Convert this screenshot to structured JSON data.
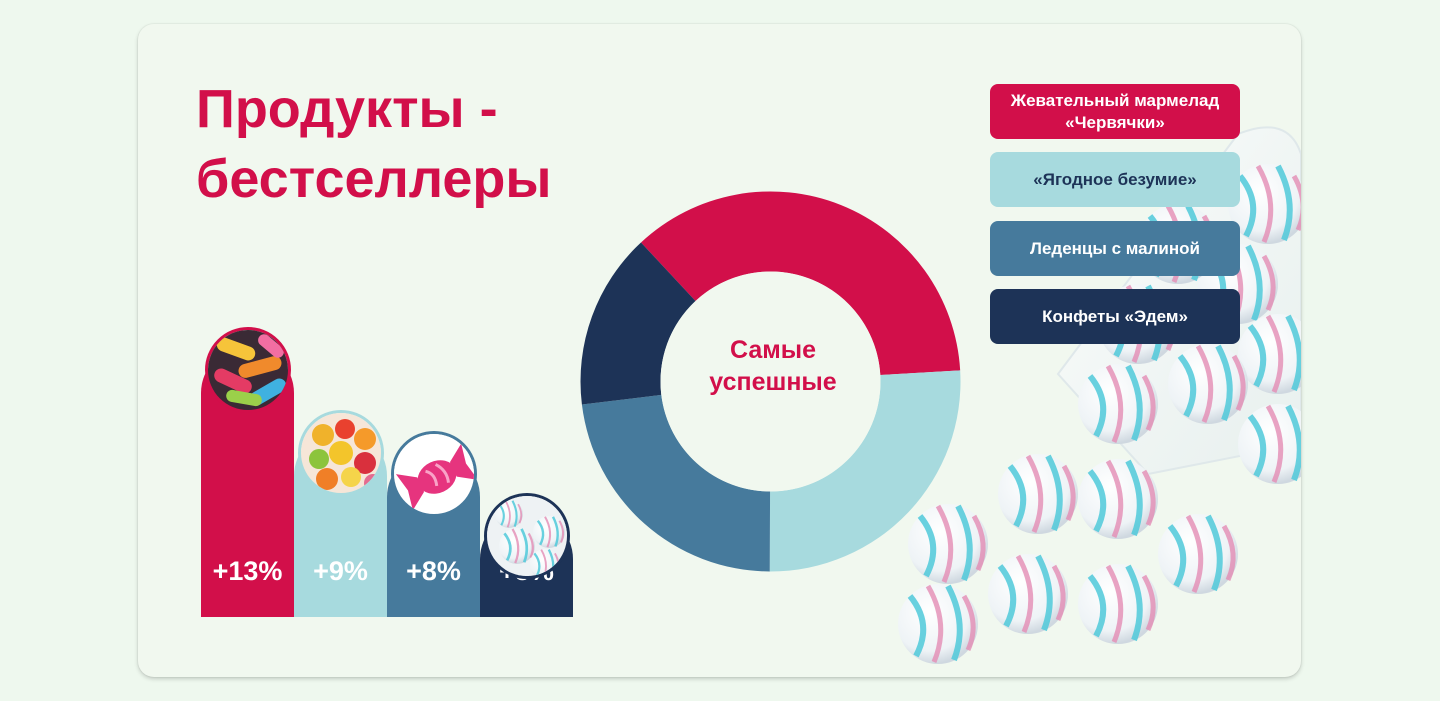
{
  "title": {
    "line1": "Продукты -",
    "line2": "бестселлеры"
  },
  "colors": {
    "crimson": "#d20f4a",
    "light_teal": "#a7dade",
    "steel_blue": "#467a9c",
    "navy": "#1d3357",
    "background": "#f1f8ef"
  },
  "chart_data": [
    {
      "type": "bar",
      "categories": [
        "Жевательный мармелад «Червячки»",
        "«Ягодное безумие»",
        "Леденцы с малиной",
        "Конфеты «Эдем»"
      ],
      "values": [
        13,
        9,
        8,
        5
      ],
      "labels": [
        "+13%",
        "+9%",
        "+8%",
        "+5%"
      ],
      "unit": "%",
      "colors": [
        "#d20f4a",
        "#a7dade",
        "#467a9c",
        "#1d3357"
      ],
      "icons": [
        "gummy-worms-photo",
        "gummy-bears-photo",
        "candy-icon",
        "marshmallow-candies-photo"
      ]
    },
    {
      "type": "pie",
      "subtype": "donut",
      "center_label": "Самые успешные",
      "categories": [
        "Жевательный мармелад «Червячки»",
        "«Ягодное безумие»",
        "Леденцы с малиной",
        "Конфеты «Эдем»"
      ],
      "values": [
        36,
        26,
        23,
        15
      ],
      "colors": [
        "#d20f4a",
        "#a7dade",
        "#467a9c",
        "#1d3357"
      ],
      "legend_position": "right"
    }
  ],
  "legend": [
    {
      "label": "Жевательный мармелад «Червячки»",
      "bg": "#d20f4a",
      "fg": "#ffffff"
    },
    {
      "label": "«Ягодное безумие»",
      "bg": "#a7dade",
      "fg": "#1d3357"
    },
    {
      "label": "Леденцы с малиной",
      "bg": "#467a9c",
      "fg": "#ffffff"
    },
    {
      "label": "Конфеты «Эдем»",
      "bg": "#1d3357",
      "fg": "#ffffff"
    }
  ]
}
